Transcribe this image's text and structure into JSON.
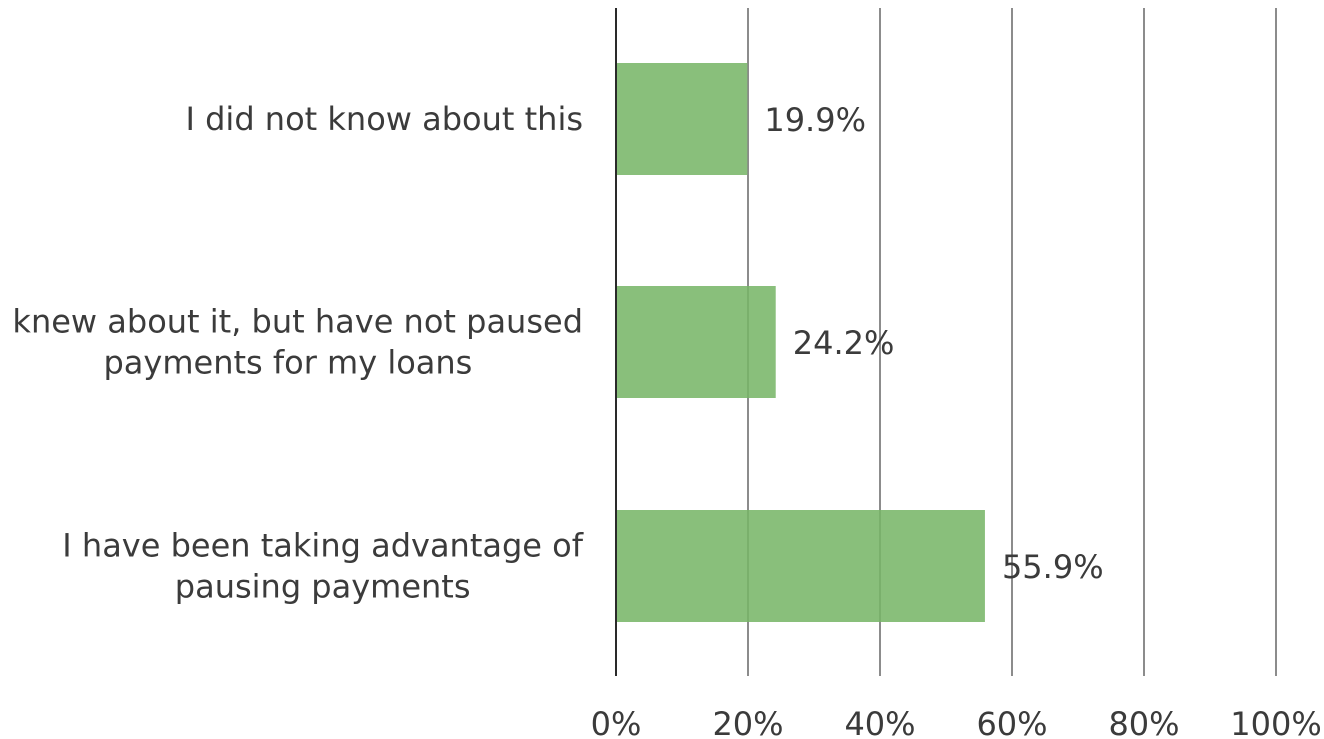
{
  "chart_data": {
    "type": "bar",
    "orientation": "horizontal",
    "categories": [
      [
        "I did not know about this"
      ],
      [
        "I knew about it, but have not paused",
        "payments for my loans"
      ],
      [
        "I have been taking advantage of",
        "pausing payments"
      ]
    ],
    "values": [
      19.9,
      24.2,
      55.9
    ],
    "data_labels": [
      "19.9%",
      "24.2%",
      "55.9%"
    ],
    "x_ticks": [
      "0%",
      "20%",
      "40%",
      "60%",
      "80%",
      "100%"
    ],
    "xlim": [
      0,
      100
    ],
    "grid": true,
    "legend": "none",
    "title": "",
    "xlabel": "",
    "ylabel": "",
    "colors": {
      "bar": "#77b567",
      "grid": "#8c8c8c",
      "axis": "#2a2a2a",
      "text": "#3b3b3b"
    }
  }
}
